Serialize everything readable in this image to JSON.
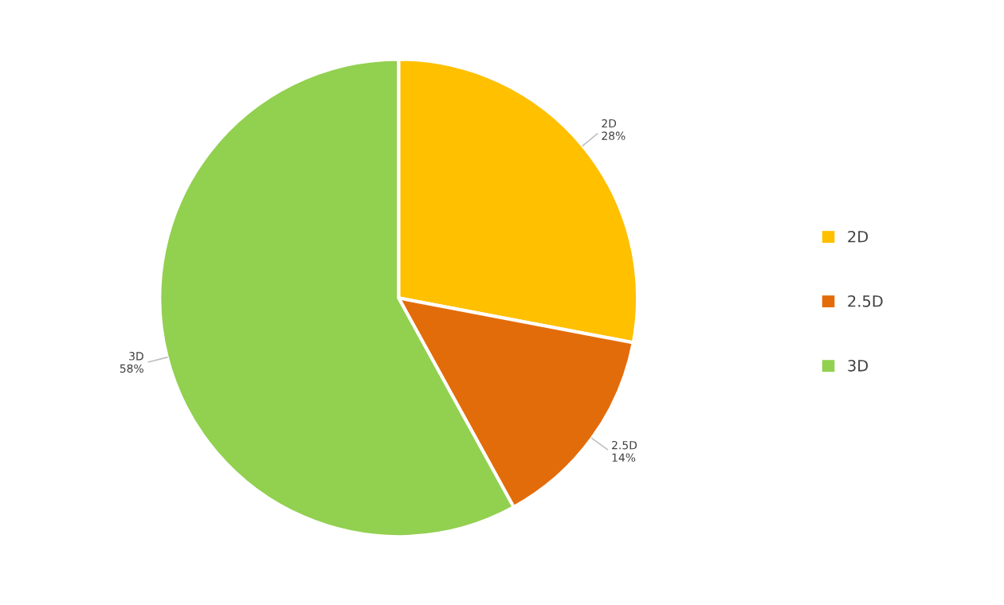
{
  "chart_data": {
    "type": "pie",
    "categories": [
      "2D",
      "2.5D",
      "3D"
    ],
    "values": [
      28,
      14,
      58
    ],
    "colors": [
      "#ffc000",
      "#e36c0a",
      "#92d050"
    ],
    "value_labels": [
      "28%",
      "14%",
      "58%"
    ],
    "legend": "right"
  }
}
